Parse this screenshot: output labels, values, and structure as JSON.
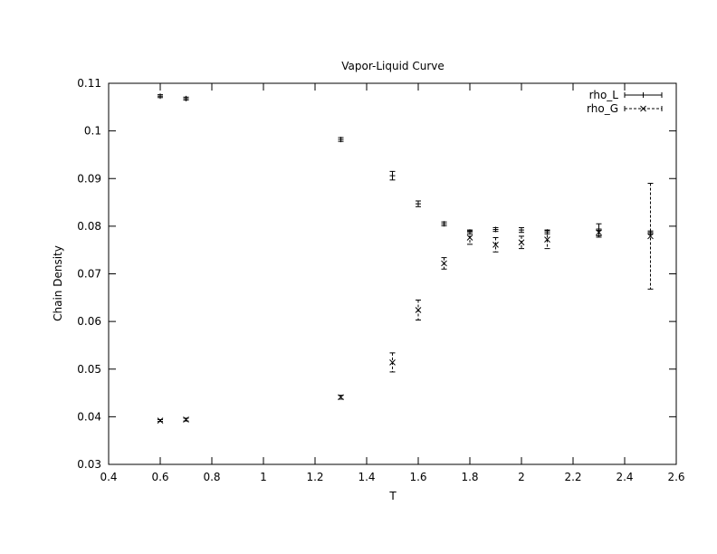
{
  "chart_data": {
    "type": "scatter",
    "title": "Vapor-Liquid Curve",
    "xlabel": "T",
    "ylabel": "Chain Density",
    "xlim": [
      0.4,
      2.6
    ],
    "ylim": [
      0.03,
      0.11
    ],
    "xticks": [
      "0.4",
      "0.6",
      "0.8",
      "1",
      "1.2",
      "1.4",
      "1.6",
      "1.8",
      "2",
      "2.2",
      "2.4",
      "2.6"
    ],
    "yticks": [
      "0.03",
      "0.04",
      "0.05",
      "0.06",
      "0.07",
      "0.08",
      "0.09",
      "0.1",
      "0.11"
    ],
    "grid": false,
    "legend_position": "top-right",
    "series": [
      {
        "name": "rho_L",
        "marker": "plus",
        "line_style": "solid",
        "color": "#000000",
        "points": [
          {
            "x": 0.6,
            "y": 0.1073,
            "err": 0.0003
          },
          {
            "x": 0.7,
            "y": 0.1068,
            "err": 0.0003
          },
          {
            "x": 1.3,
            "y": 0.0982,
            "err": 0.0004
          },
          {
            "x": 1.5,
            "y": 0.0906,
            "err": 0.0009
          },
          {
            "x": 1.6,
            "y": 0.0847,
            "err": 0.0006
          },
          {
            "x": 1.7,
            "y": 0.0805,
            "err": 0.0004
          },
          {
            "x": 1.8,
            "y": 0.0788,
            "err": 0.0004
          },
          {
            "x": 1.9,
            "y": 0.0793,
            "err": 0.0004
          },
          {
            "x": 2.0,
            "y": 0.0792,
            "err": 0.0005
          },
          {
            "x": 2.1,
            "y": 0.0788,
            "err": 0.0004
          },
          {
            "x": 2.3,
            "y": 0.0791,
            "err": 0.0014
          },
          {
            "x": 2.5,
            "y": 0.0787,
            "err": 0.0003
          }
        ]
      },
      {
        "name": "rho_G",
        "marker": "x",
        "line_style": "dashed",
        "color": "#000000",
        "points": [
          {
            "x": 0.6,
            "y": 0.0392,
            "err": 0.0002
          },
          {
            "x": 0.7,
            "y": 0.0394,
            "err": 0.0003
          },
          {
            "x": 1.3,
            "y": 0.0441,
            "err": 0.0004
          },
          {
            "x": 1.5,
            "y": 0.0514,
            "err": 0.002
          },
          {
            "x": 1.6,
            "y": 0.0624,
            "err": 0.0021
          },
          {
            "x": 1.7,
            "y": 0.0722,
            "err": 0.0012
          },
          {
            "x": 1.8,
            "y": 0.0776,
            "err": 0.0014
          },
          {
            "x": 1.9,
            "y": 0.0761,
            "err": 0.0015
          },
          {
            "x": 2.0,
            "y": 0.0766,
            "err": 0.0013
          },
          {
            "x": 2.1,
            "y": 0.0772,
            "err": 0.0019
          },
          {
            "x": 2.3,
            "y": 0.0787,
            "err": 0.0007
          },
          {
            "x": 2.5,
            "y": 0.0779,
            "err": 0.0111
          }
        ]
      }
    ]
  }
}
